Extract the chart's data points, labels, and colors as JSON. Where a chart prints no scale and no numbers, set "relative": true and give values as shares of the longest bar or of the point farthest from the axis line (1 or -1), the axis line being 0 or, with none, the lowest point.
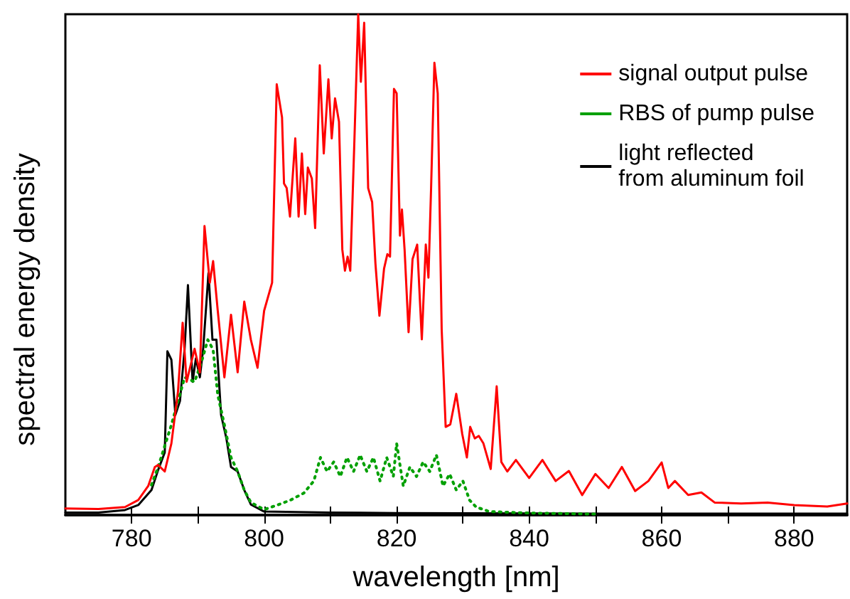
{
  "chart_data": {
    "type": "line",
    "relative": true,
    "xlabel": "wavelength [nm]",
    "ylabel": "spectral energy density",
    "xlim": [
      770,
      888
    ],
    "xticks": [
      780,
      {
        "value": 790,
        "label": null
      },
      800,
      {
        "value": 810,
        "label": null
      },
      820,
      {
        "value": 830,
        "label": null
      },
      840,
      {
        "value": 850,
        "label": null
      },
      860,
      {
        "value": 870,
        "label": null
      },
      880
    ],
    "legend": "top right",
    "marker": "none",
    "grid": false,
    "series": [
      {
        "name": "signal output pulse",
        "color": "#ff0000",
        "line_style": "solid",
        "x": [
          770,
          775,
          779,
          781,
          782.5,
          783.5,
          784,
          785,
          786,
          787,
          787.7,
          788.3,
          789.5,
          790.3,
          791,
          791.8,
          792.3,
          793,
          794,
          795,
          796,
          797,
          798,
          799,
          800,
          801.2,
          801.9,
          802.7,
          803,
          803.4,
          803.9,
          804.7,
          805.2,
          805.7,
          806.2,
          806.6,
          807.2,
          807.7,
          808.4,
          809,
          809.7,
          810.2,
          810.7,
          811.3,
          811.8,
          812.2,
          812.6,
          813,
          813.6,
          814.2,
          814.6,
          815.1,
          815.7,
          816.3,
          816.8,
          817.4,
          818.1,
          818.6,
          819,
          819.6,
          820,
          820.5,
          820.8,
          821.2,
          821.8,
          822.4,
          823.1,
          823.8,
          824.4,
          824.8,
          825.2,
          825.7,
          826.2,
          826.8,
          827.4,
          828.1,
          829,
          829.9,
          830.6,
          831.1,
          831.8,
          832.4,
          833.1,
          834.2,
          835.1,
          835.8,
          836.7,
          838,
          840,
          842,
          844,
          846,
          848,
          850,
          852,
          854,
          856,
          858,
          860,
          861,
          862,
          864,
          866,
          868,
          872,
          876,
          880,
          885,
          888
        ],
        "values": [
          0.013,
          0.012,
          0.016,
          0.03,
          0.058,
          0.096,
          0.1,
          0.087,
          0.143,
          0.247,
          0.384,
          0.266,
          0.332,
          0.285,
          0.577,
          0.464,
          0.507,
          0.408,
          0.275,
          0.4,
          0.285,
          0.426,
          0.35,
          0.294,
          0.408,
          0.464,
          0.86,
          0.794,
          0.662,
          0.653,
          0.596,
          0.752,
          0.596,
          0.722,
          0.601,
          0.694,
          0.672,
          0.573,
          0.898,
          0.722,
          0.87,
          0.752,
          0.832,
          0.785,
          0.53,
          0.488,
          0.516,
          0.488,
          0.738,
          1,
          0.865,
          0.983,
          0.653,
          0.625,
          0.502,
          0.398,
          0.492,
          0.521,
          0.516,
          0.851,
          0.842,
          0.558,
          0.61,
          0.53,
          0.365,
          0.511,
          0.54,
          0.351,
          0.54,
          0.474,
          0.653,
          0.903,
          0.842,
          0.37,
          0.176,
          0.181,
          0.242,
          0.162,
          0.115,
          0.176,
          0.153,
          0.158,
          0.143,
          0.092,
          0.257,
          0.106,
          0.087,
          0.11,
          0.074,
          0.11,
          0.068,
          0.088,
          0.04,
          0.082,
          0.054,
          0.096,
          0.048,
          0.068,
          0.105,
          0.054,
          0.068,
          0.04,
          0.045,
          0.025,
          0.023,
          0.025,
          0.02,
          0.017,
          0.023
        ]
      },
      {
        "name": "RBS of pump pulse",
        "color": "#00a000",
        "line_style": "dotted",
        "x": [
          783,
          784,
          786,
          788,
          789.5,
          790.5,
          791.5,
          792.3,
          793,
          794,
          795,
          796,
          797,
          798,
          800,
          802,
          804,
          806,
          807.5,
          808.5,
          809.5,
          810.5,
          811.5,
          812.5,
          813.5,
          814.5,
          815.5,
          816.5,
          817.5,
          818.5,
          819.5,
          820,
          821,
          822,
          823,
          824,
          825,
          826,
          827,
          828,
          829,
          830,
          831,
          832,
          834,
          840,
          850
        ],
        "values": [
          0.06,
          0.096,
          0.18,
          0.275,
          0.266,
          0.304,
          0.35,
          0.33,
          0.24,
          0.18,
          0.115,
          0.087,
          0.05,
          0.025,
          0.011,
          0.02,
          0.03,
          0.044,
          0.068,
          0.115,
          0.087,
          0.106,
          0.077,
          0.115,
          0.087,
          0.12,
          0.087,
          0.115,
          0.068,
          0.115,
          0.077,
          0.143,
          0.058,
          0.096,
          0.077,
          0.106,
          0.087,
          0.12,
          0.058,
          0.082,
          0.05,
          0.068,
          0.03,
          0.016,
          0.007,
          0.004,
          0.002
        ]
      },
      {
        "name": "light reflected\nfrom aluminum foil",
        "color": "#000000",
        "line_style": "solid",
        "x": [
          770,
          775,
          779,
          781,
          783,
          784,
          785,
          785.4,
          786,
          786.6,
          787.3,
          788,
          788.5,
          789.2,
          789.7,
          790.3,
          790.8,
          791.6,
          792.2,
          792.8,
          793.5,
          794.3,
          795,
          796,
          797,
          798,
          800,
          810,
          820,
          850,
          888
        ],
        "values": [
          0.005,
          0.005,
          0.01,
          0.02,
          0.05,
          0.09,
          0.125,
          0.327,
          0.31,
          0.2,
          0.228,
          0.332,
          0.459,
          0.266,
          0.313,
          0.275,
          0.332,
          0.483,
          0.35,
          0.35,
          0.2,
          0.153,
          0.096,
          0.087,
          0.05,
          0.021,
          0.007,
          0.005,
          0.004,
          0.003,
          0.003
        ]
      }
    ]
  }
}
